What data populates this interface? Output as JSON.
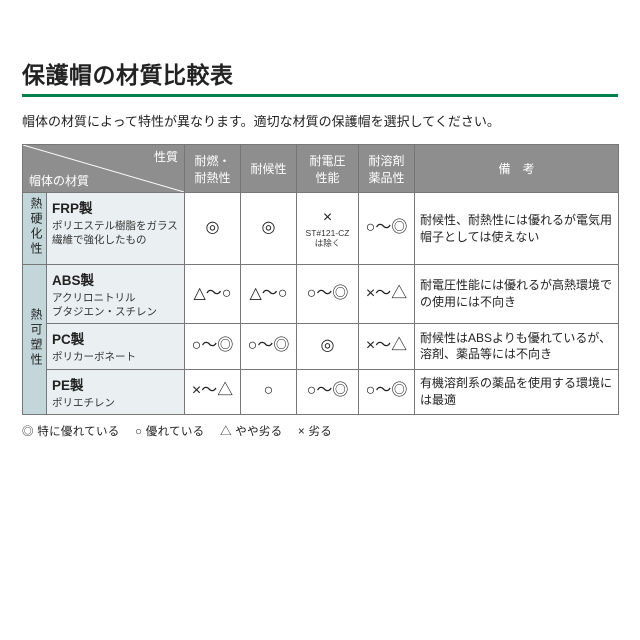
{
  "colors": {
    "rule": "#00824a",
    "header_bg": "#8e8e8e",
    "header_fg": "#ffffff",
    "vcat_bg": "#c3d7db",
    "mat_bg": "#eaf0f1",
    "border": "#777777",
    "text": "#222222"
  },
  "title": "保護帽の材質比較表",
  "lead": "帽体の材質によって特性が異なります。適切な材質の保護帽を選択してください。",
  "header": {
    "corner_top": "性質",
    "corner_bottom": "帽体の材質",
    "cols": [
      "耐燃・\n耐熱性",
      "耐候性",
      "耐電圧\n性能",
      "耐溶剤\n薬品性",
      "備　考"
    ]
  },
  "groups": [
    {
      "label": "熱硬化性",
      "rows": [
        {
          "name": "FRP製",
          "desc": "ポリエステル樹脂をガラス\n繊維で強化したもの",
          "ratings": [
            "◎",
            "◎",
            "×",
            "○～◎"
          ],
          "rating_sub": [
            "",
            "",
            "ST#121-CZ\nは除く",
            ""
          ],
          "remark": "耐候性、耐熱性には優れるが電気用帽子としては使えない"
        }
      ]
    },
    {
      "label": "熱可塑性",
      "rows": [
        {
          "name": "ABS製",
          "desc": "アクリロニトリル\nブタジエン・スチレン",
          "ratings": [
            "△～○",
            "△～○",
            "○～◎",
            "×～△"
          ],
          "rating_sub": [
            "",
            "",
            "",
            ""
          ],
          "remark": "耐電圧性能には優れるが高熱環境での使用には不向き"
        },
        {
          "name": "PC製",
          "desc": "ポリカーボネート",
          "ratings": [
            "○～◎",
            "○～◎",
            "◎",
            "×～△"
          ],
          "rating_sub": [
            "",
            "",
            "",
            ""
          ],
          "remark": "耐候性はABSよりも優れているが、溶剤、薬品等には不向き"
        },
        {
          "name": "PE製",
          "desc": "ポリエチレン",
          "ratings": [
            "×～△",
            "○",
            "○～◎",
            "○～◎"
          ],
          "rating_sub": [
            "",
            "",
            "",
            ""
          ],
          "remark": "有機溶剤系の薬品を使用する環境には最適"
        }
      ]
    }
  ],
  "legend": [
    "◎ 特に優れている",
    "○ 優れている",
    "△ やや劣る",
    "× 劣る"
  ]
}
